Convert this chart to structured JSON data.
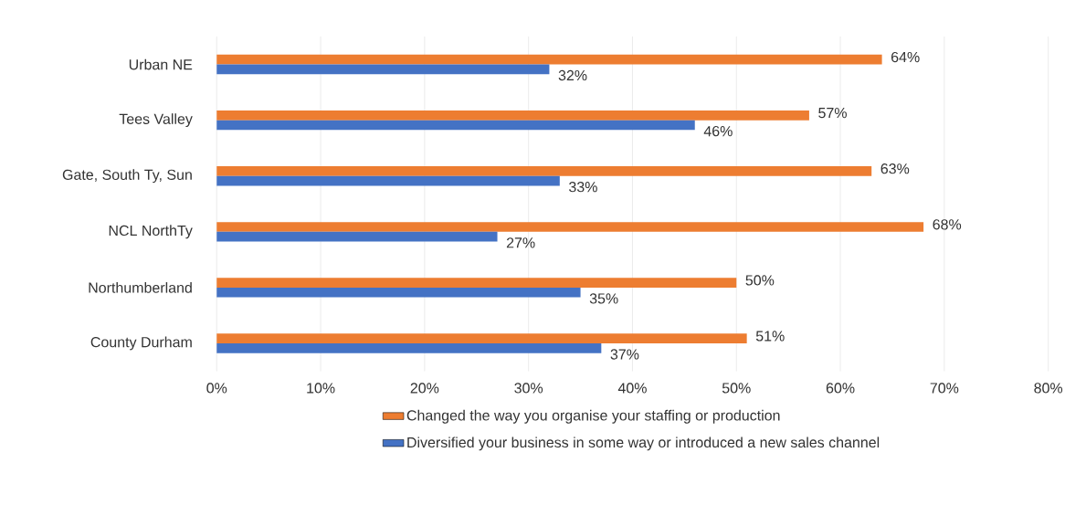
{
  "chart_data": {
    "type": "bar",
    "orientation": "horizontal",
    "categories": [
      "Urban NE",
      "Tees Valley",
      "Gate, South Ty, Sun",
      "NCL NorthTy",
      "Northumberland",
      "County Durham"
    ],
    "series": [
      {
        "name": "Changed the way you organise your staffing or production",
        "color": "#ed7d31",
        "values": [
          64,
          57,
          63,
          68,
          50,
          51
        ],
        "value_labels": [
          "64%",
          "57%",
          "63%",
          "68%",
          "50%",
          "51%"
        ]
      },
      {
        "name": "Diversified your business in some way or introduced a new sales channel",
        "color": "#4472c4",
        "values": [
          32,
          46,
          33,
          27,
          35,
          37
        ],
        "value_labels": [
          "32%",
          "46%",
          "33%",
          "27%",
          "35%",
          "37%"
        ]
      }
    ],
    "xlim": [
      0,
      80
    ],
    "xticks": [
      {
        "value": 0,
        "label": "0%"
      },
      {
        "value": 10,
        "label": "10%"
      },
      {
        "value": 20,
        "label": "20%"
      },
      {
        "value": 30,
        "label": "30%"
      },
      {
        "value": 40,
        "label": "40%"
      },
      {
        "value": 50,
        "label": "50%"
      },
      {
        "value": 60,
        "label": "60%"
      },
      {
        "value": 70,
        "label": "70%"
      },
      {
        "value": 80,
        "label": "80%"
      }
    ],
    "grid": "x",
    "legend": "bottom"
  }
}
